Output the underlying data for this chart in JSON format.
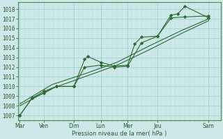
{
  "xlabel_label": "Pression niveau de la mer( hPa )",
  "bg_color": "#cce8e8",
  "grid_major_color": "#99cccc",
  "grid_minor_color": "#b8dddd",
  "line_color": "#2d6a2d",
  "text_color": "#2d5a2d",
  "spine_color": "#4a8a4a",
  "ylim": [
    1006.5,
    1018.7
  ],
  "yticks": [
    1007,
    1008,
    1009,
    1010,
    1011,
    1012,
    1013,
    1014,
    1015,
    1016,
    1017,
    1018
  ],
  "day_labels": [
    "Mar",
    "Ven",
    "Dim",
    "Lun",
    "Mer",
    "Jeu",
    "Sam"
  ],
  "day_positions": [
    0.0,
    0.75,
    1.67,
    2.5,
    3.33,
    4.25,
    5.83
  ],
  "xlim": [
    -0.05,
    6.2
  ],
  "line1_x": [
    0.0,
    0.38,
    0.75,
    1.13,
    1.67,
    2.0,
    2.1,
    2.5,
    2.92,
    3.33,
    3.55,
    3.75,
    4.25,
    4.67,
    4.87,
    5.1,
    5.83
  ],
  "line1_y": [
    1007.0,
    1008.8,
    1009.3,
    1010.0,
    1010.0,
    1012.8,
    1013.1,
    1012.5,
    1012.1,
    1012.2,
    1014.4,
    1015.1,
    1015.2,
    1017.4,
    1017.5,
    1018.3,
    1017.1
  ],
  "line2_x": [
    0.0,
    0.38,
    0.75,
    1.13,
    1.67,
    2.0,
    2.5,
    2.92,
    3.33,
    3.75,
    4.25,
    4.67,
    5.1,
    5.83
  ],
  "line2_y": [
    1007.0,
    1008.8,
    1009.5,
    1010.0,
    1010.0,
    1012.0,
    1012.2,
    1012.0,
    1012.1,
    1014.5,
    1015.2,
    1017.1,
    1017.2,
    1017.3
  ],
  "line3_x": [
    0.0,
    1.0,
    2.0,
    3.0,
    4.0,
    5.0,
    5.83
  ],
  "line3_y": [
    1008.0,
    1009.8,
    1011.0,
    1012.2,
    1013.8,
    1015.5,
    1016.8
  ],
  "line4_x": [
    0.0,
    1.0,
    2.0,
    3.0,
    4.0,
    5.0,
    5.83
  ],
  "line4_y": [
    1008.2,
    1010.2,
    1011.3,
    1012.5,
    1014.2,
    1015.8,
    1017.0
  ],
  "marker": "D",
  "markersize": 2.2,
  "linewidth": 0.8
}
